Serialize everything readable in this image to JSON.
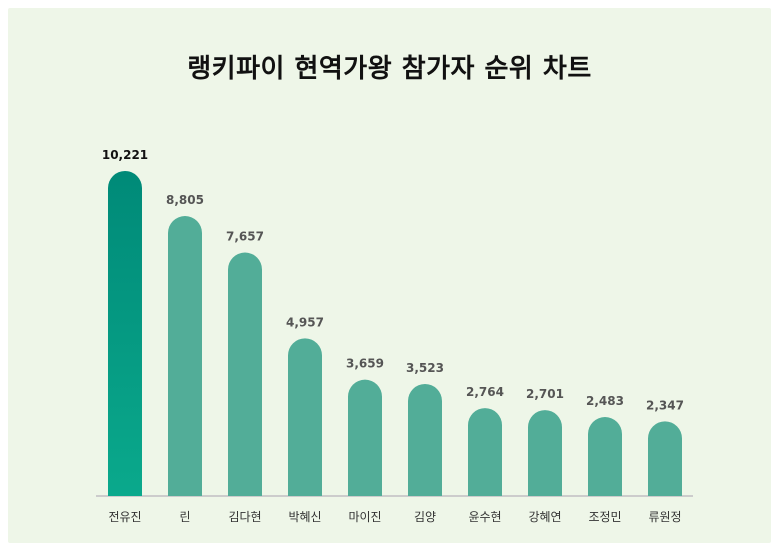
{
  "chart_data": {
    "type": "bar",
    "title": "랭키파이 현역가왕 참가자 순위 차트",
    "categories": [
      "전유진",
      "린",
      "김다현",
      "박혜신",
      "마이진",
      "김양",
      "윤수현",
      "강혜연",
      "조정민",
      "류원정"
    ],
    "values": [
      10221,
      8805,
      7657,
      4957,
      3659,
      3523,
      2764,
      2701,
      2483,
      2347
    ],
    "value_labels": [
      "10,221",
      "8,805",
      "7,657",
      "4,957",
      "3,659",
      "3,523",
      "2,764",
      "2,701",
      "2,483",
      "2,347"
    ],
    "xlabel": "",
    "ylabel": "",
    "ylim": [
      0,
      10221
    ],
    "grid": false,
    "legend": "none",
    "colors": {
      "bar": "#52ad98",
      "highlight_top": "#008a78",
      "highlight_bottom": "#0aa98c",
      "baseline": "#cccccc",
      "background": "#eef6e8"
    }
  }
}
